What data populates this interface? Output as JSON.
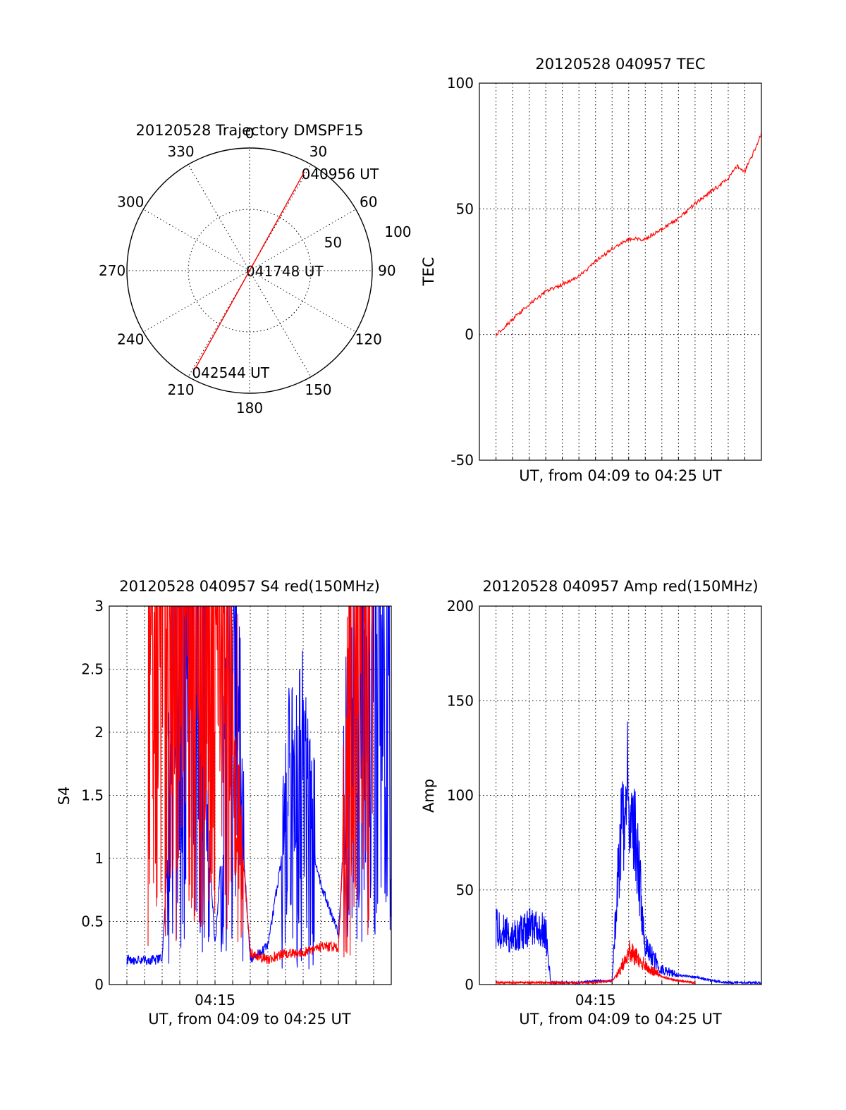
{
  "chart_data": [
    {
      "type": "polar",
      "title": "20120528 Trajectory DMSPF15",
      "azimuth_labels": [
        "0",
        "30",
        "60",
        "90",
        "120",
        "150",
        "180",
        "210",
        "240",
        "270",
        "300",
        "330"
      ],
      "radial_labels": [
        "50",
        "100"
      ],
      "rlim": [
        0,
        100
      ],
      "grid": true,
      "series": [
        {
          "color": "#ff0000",
          "points": [
            {
              "az": 29,
              "r": 92
            },
            {
              "az": 0,
              "r": 0
            },
            {
              "az": 209,
              "r": 92
            }
          ]
        }
      ],
      "annotations": [
        {
          "text": "040956 UT",
          "az": 29,
          "r": 92
        },
        {
          "text": "041748 UT",
          "az": 0,
          "r": 0
        },
        {
          "text": "042544 UT",
          "az": 209,
          "r": 92
        }
      ]
    },
    {
      "type": "line",
      "title": "20120528 040957 TEC",
      "xlabel": "UT, from 04:09 to 04:25 UT",
      "ylabel": "TEC",
      "xlim": [
        "04:08.0",
        "04:25.0"
      ],
      "ylim": [
        -50,
        100
      ],
      "yticks": [
        "-50",
        "0",
        "50",
        "100"
      ],
      "xticks": [],
      "grid": true,
      "series": [
        {
          "color": "#ff0000",
          "x": [
            "04:09.0",
            "04:10.0",
            "04:11.0",
            "04:12.0",
            "04:13.0",
            "04:14.0",
            "04:15.0",
            "04:16.0",
            "04:17.0",
            "04:18.0",
            "04:19.0",
            "04:20.0",
            "04:21.0",
            "04:22.0",
            "04:23.0",
            "04:23.5",
            "04:24.0",
            "04:24.5",
            "04:25.0"
          ],
          "y": [
            0,
            6,
            12,
            17,
            20,
            23,
            29,
            34,
            38,
            38,
            42,
            46,
            52,
            57,
            62,
            67,
            65,
            72,
            80
          ]
        }
      ]
    },
    {
      "type": "line",
      "title": "20120528 040957 S4 red(150MHz)",
      "xlabel": "UT, from 04:09 to 04:25 UT",
      "ylabel": "S4",
      "xlim": [
        "04:09.0",
        "04:25.0"
      ],
      "ylim": [
        0,
        3
      ],
      "yticks": [
        "0",
        "0.5",
        "1",
        "1.5",
        "2",
        "2.5",
        "3"
      ],
      "xticks": [
        "04:15"
      ],
      "grid": true,
      "series": [
        {
          "color": "#0000ff",
          "x": [
            "04:10.0",
            "04:11.0",
            "04:12.0",
            "04:13.0",
            "04:14.0",
            "04:15.0",
            "04:16.0",
            "04:17.0",
            "04:18.0",
            "04:19.0",
            "04:20.0",
            "04:21.0",
            "04:22.0",
            "04:23.0",
            "04:24.0",
            "04:25.0"
          ],
          "y": [
            0.2,
            0.19,
            0.2,
            2.9,
            2.8,
            0.3,
            2.4,
            0.2,
            0.3,
            1.2,
            1.4,
            0.8,
            0.4,
            2.9,
            2.8,
            2.2
          ]
        },
        {
          "color": "#ff0000",
          "x": [
            "04:11.2",
            "04:12.0",
            "04:14.5",
            "04:15.5",
            "04:17.0",
            "04:18.0",
            "04:19.0",
            "04:20.0",
            "04:21.0",
            "04:22.0",
            "04:23.0",
            "04:24.0"
          ],
          "y": [
            3.0,
            3.0,
            3.0,
            3.0,
            0.25,
            0.2,
            0.25,
            0.25,
            0.3,
            0.3,
            3.0,
            3.0
          ]
        }
      ]
    },
    {
      "type": "line",
      "title": "20120528 040957 Amp red(150MHz)",
      "xlabel": "UT, from 04:09 to 04:25 UT",
      "ylabel": "Amp",
      "xlim": [
        "04:08.0",
        "04:25.0"
      ],
      "ylim": [
        0,
        200
      ],
      "yticks": [
        "0",
        "50",
        "100",
        "150",
        "200"
      ],
      "xticks": [
        "04:15"
      ],
      "grid": true,
      "series": [
        {
          "color": "#0000ff",
          "x": [
            "04:09.0",
            "04:10.0",
            "04:11.0",
            "04:12.0",
            "04:12.3",
            "04:13.0",
            "04:14.0",
            "04:15.0",
            "04:16.0",
            "04:16.5",
            "04:17.0",
            "04:17.5",
            "04:18.0",
            "04:19.0",
            "04:20.0",
            "04:21.0",
            "04:22.0",
            "04:23.0",
            "04:24.0",
            "04:25.0"
          ],
          "y": [
            30,
            25,
            30,
            28,
            1,
            1,
            1,
            2,
            2,
            80,
            110,
            70,
            20,
            8,
            5,
            4,
            2,
            1,
            1,
            1
          ]
        },
        {
          "color": "#ff0000",
          "x": [
            "04:09.0",
            "04:12.0",
            "04:15.0",
            "04:16.0",
            "04:16.5",
            "04:17.0",
            "04:17.5",
            "04:18.0",
            "04:19.0",
            "04:20.0",
            "04:21.0"
          ],
          "y": [
            1,
            1,
            1,
            2,
            8,
            18,
            14,
            10,
            4,
            2,
            1
          ]
        }
      ]
    }
  ]
}
